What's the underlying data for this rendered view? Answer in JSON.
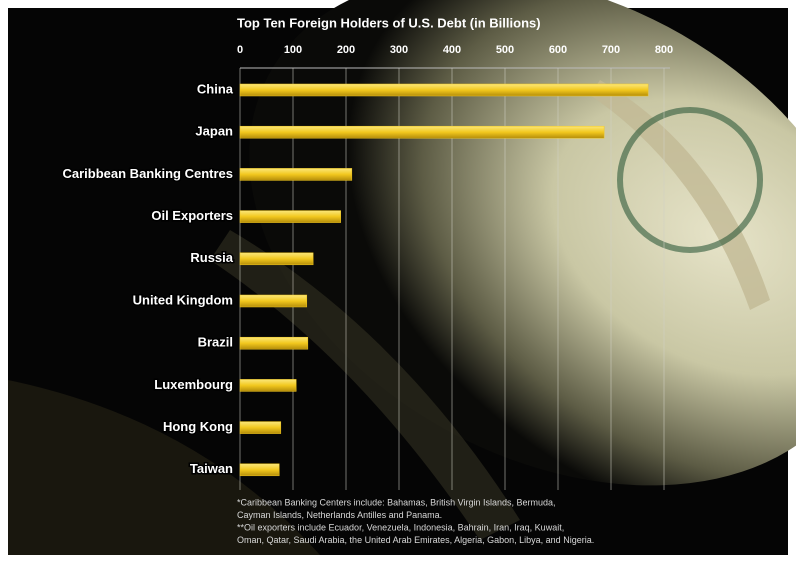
{
  "chart_data": {
    "type": "bar",
    "orientation": "horizontal",
    "title": "Top Ten Foreign Holders of U.S. Debt (in Billions)",
    "categories": [
      "China",
      "Japan",
      "Caribbean Banking Centres",
      "Oil Exporters",
      "Russia",
      "United Kingdom",
      "Brazil",
      "Luxembourg",
      "Hong Kong",
      "Taiwan"
    ],
    "values": [
      770,
      687,
      211,
      190,
      138,
      126,
      128,
      106,
      77,
      74
    ],
    "color": "#f2c81e",
    "xlim": [
      0,
      800
    ],
    "xticks": [
      0,
      100,
      200,
      300,
      400,
      500,
      600,
      700,
      800
    ],
    "grid": true,
    "notes": [
      "*Caribbean Banking Centers include: Bahamas, British Virgin Islands, Bermuda,",
      "Cayman Islands, Netherlands Antilles and Panama.",
      "**Oil exporters include Ecuador, Venezuela, Indonesia, Bahrain, Iran, Iraq, Kuwait,",
      "Oman, Qatar, Saudi Arabia, the United Arab Emirates, Algeria, Gabon, Libya, and Nigeria."
    ]
  }
}
